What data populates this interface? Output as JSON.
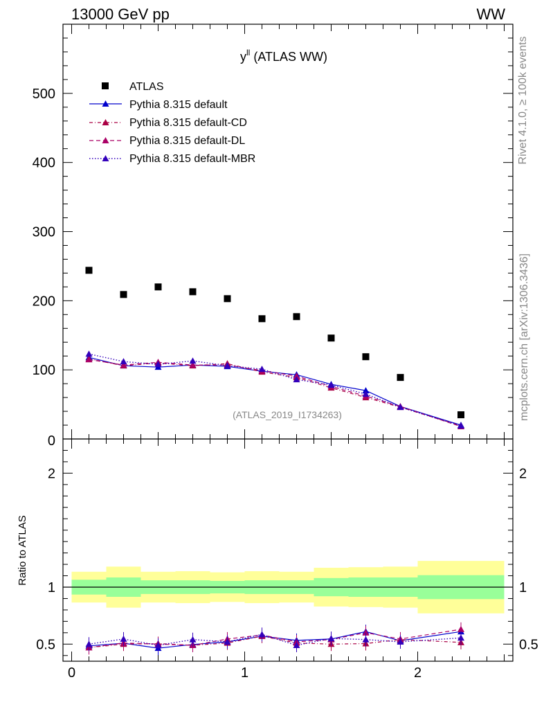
{
  "header": {
    "energy_label": "13000 GeV pp",
    "process_label": "WW"
  },
  "side_labels": {
    "rivet": "Rivet 4.1.0, ≥ 100k events",
    "mcplots": "mcplots.cern.ch [arXiv:1306.3436]"
  },
  "chart_data": [
    {
      "type": "scatter",
      "title_main": "y",
      "title_sup": "ll",
      "title_rest": " (ATLAS WW)",
      "analysis_id": "(ATLAS_2019_I1734263)",
      "xlim": [
        -0.05,
        2.55
      ],
      "ylim": [
        0,
        600
      ],
      "yticks": [
        100,
        200,
        300,
        400,
        500
      ],
      "ytick_labels": [
        "100",
        "200",
        "300",
        "400",
        "500"
      ],
      "y_bottom_label": "0",
      "x": [
        0.1,
        0.3,
        0.5,
        0.7,
        0.9,
        1.1,
        1.3,
        1.5,
        1.7,
        1.9,
        2.25
      ],
      "bins": [
        [
          0.0,
          0.2
        ],
        [
          0.2,
          0.4
        ],
        [
          0.4,
          0.6
        ],
        [
          0.6,
          0.8
        ],
        [
          0.8,
          1.0
        ],
        [
          1.0,
          1.2
        ],
        [
          1.2,
          1.4
        ],
        [
          1.4,
          1.6
        ],
        [
          1.6,
          1.8
        ],
        [
          1.8,
          2.0
        ],
        [
          2.0,
          2.5
        ]
      ],
      "data": {
        "name": "ATLAS",
        "values": [
          244,
          209,
          220,
          213,
          203,
          174,
          177,
          146,
          119,
          89,
          35
        ]
      },
      "series": [
        {
          "name": "Pythia 8.315 default",
          "color": "#0000cc",
          "dash": "",
          "values": [
            118,
            106,
            104,
            107,
            105,
            98,
            93,
            79,
            70,
            47,
            20
          ]
        },
        {
          "name": "Pythia 8.315 default-CD",
          "color": "#aa0044",
          "dash": "5,3,1,3",
          "values": [
            116,
            106,
            110,
            106,
            109,
            97,
            89,
            74,
            60,
            46,
            19
          ]
        },
        {
          "name": "Pythia 8.315 default-DL",
          "color": "#aa0066",
          "dash": "6,4",
          "values": [
            115,
            107,
            111,
            107,
            107,
            99,
            91,
            76,
            62,
            47,
            18
          ]
        },
        {
          "name": "Pythia 8.315 default-MBR",
          "color": "#3300bb",
          "dash": "1.5,2.5",
          "values": [
            123,
            112,
            108,
            113,
            106,
            101,
            86,
            78,
            65,
            46,
            19
          ]
        }
      ]
    },
    {
      "type": "line",
      "ylabel": "Ratio to ATLAS",
      "xlim": [
        -0.05,
        2.55
      ],
      "ylim": [
        0.35,
        2.3
      ],
      "xticks": [
        0,
        1,
        2
      ],
      "xtick_labels": [
        "0",
        "1",
        "2"
      ],
      "yticks": [
        0.5,
        1,
        2
      ],
      "ytick_labels": [
        "0.5",
        "1",
        "2"
      ],
      "bins": [
        [
          0.0,
          0.2
        ],
        [
          0.2,
          0.4
        ],
        [
          0.4,
          0.6
        ],
        [
          0.6,
          0.8
        ],
        [
          0.8,
          1.0
        ],
        [
          1.0,
          1.2
        ],
        [
          1.2,
          1.4
        ],
        [
          1.4,
          1.6
        ],
        [
          1.6,
          1.8
        ],
        [
          1.8,
          2.0
        ],
        [
          2.0,
          2.5
        ]
      ],
      "band_inner": [
        [
          0.935,
          1.065
        ],
        [
          0.915,
          1.085
        ],
        [
          0.94,
          1.06
        ],
        [
          0.94,
          1.06
        ],
        [
          0.945,
          1.055
        ],
        [
          0.94,
          1.06
        ],
        [
          0.94,
          1.06
        ],
        [
          0.92,
          1.08
        ],
        [
          0.915,
          1.085
        ],
        [
          0.915,
          1.085
        ],
        [
          0.895,
          1.105
        ]
      ],
      "band_outer": [
        [
          0.865,
          1.135
        ],
        [
          0.82,
          1.18
        ],
        [
          0.865,
          1.135
        ],
        [
          0.86,
          1.14
        ],
        [
          0.87,
          1.13
        ],
        [
          0.86,
          1.14
        ],
        [
          0.865,
          1.135
        ],
        [
          0.83,
          1.17
        ],
        [
          0.825,
          1.175
        ],
        [
          0.82,
          1.18
        ],
        [
          0.77,
          1.23
        ]
      ],
      "x": [
        0.1,
        0.3,
        0.5,
        0.7,
        0.9,
        1.1,
        1.3,
        1.5,
        1.7,
        1.9,
        2.25
      ],
      "series": [
        {
          "name": "Pythia 8.315 default",
          "color": "#0000cc",
          "dash": "",
          "values": [
            0.485,
            0.508,
            0.465,
            0.497,
            0.52,
            0.57,
            0.533,
            0.545,
            0.61,
            0.53,
            0.61
          ]
        },
        {
          "name": "Pythia 8.315 default-CD",
          "color": "#aa0044",
          "dash": "5,3,1,3",
          "values": [
            0.47,
            0.5,
            0.505,
            0.49,
            0.51,
            0.57,
            0.51,
            0.5,
            0.505,
            0.54,
            0.515
          ]
        },
        {
          "name": "Pythia 8.315 default-DL",
          "color": "#aa0066",
          "dash": "6,4",
          "values": [
            0.47,
            0.51,
            0.5,
            0.49,
            0.545,
            0.58,
            0.52,
            0.54,
            0.6,
            0.545,
            0.63
          ]
        },
        {
          "name": "Pythia 8.315 default-MBR",
          "color": "#3300bb",
          "dash": "1.5,2.5",
          "values": [
            0.5,
            0.545,
            0.49,
            0.54,
            0.52,
            0.585,
            0.49,
            0.55,
            0.54,
            0.52,
            0.555
          ]
        }
      ]
    }
  ]
}
